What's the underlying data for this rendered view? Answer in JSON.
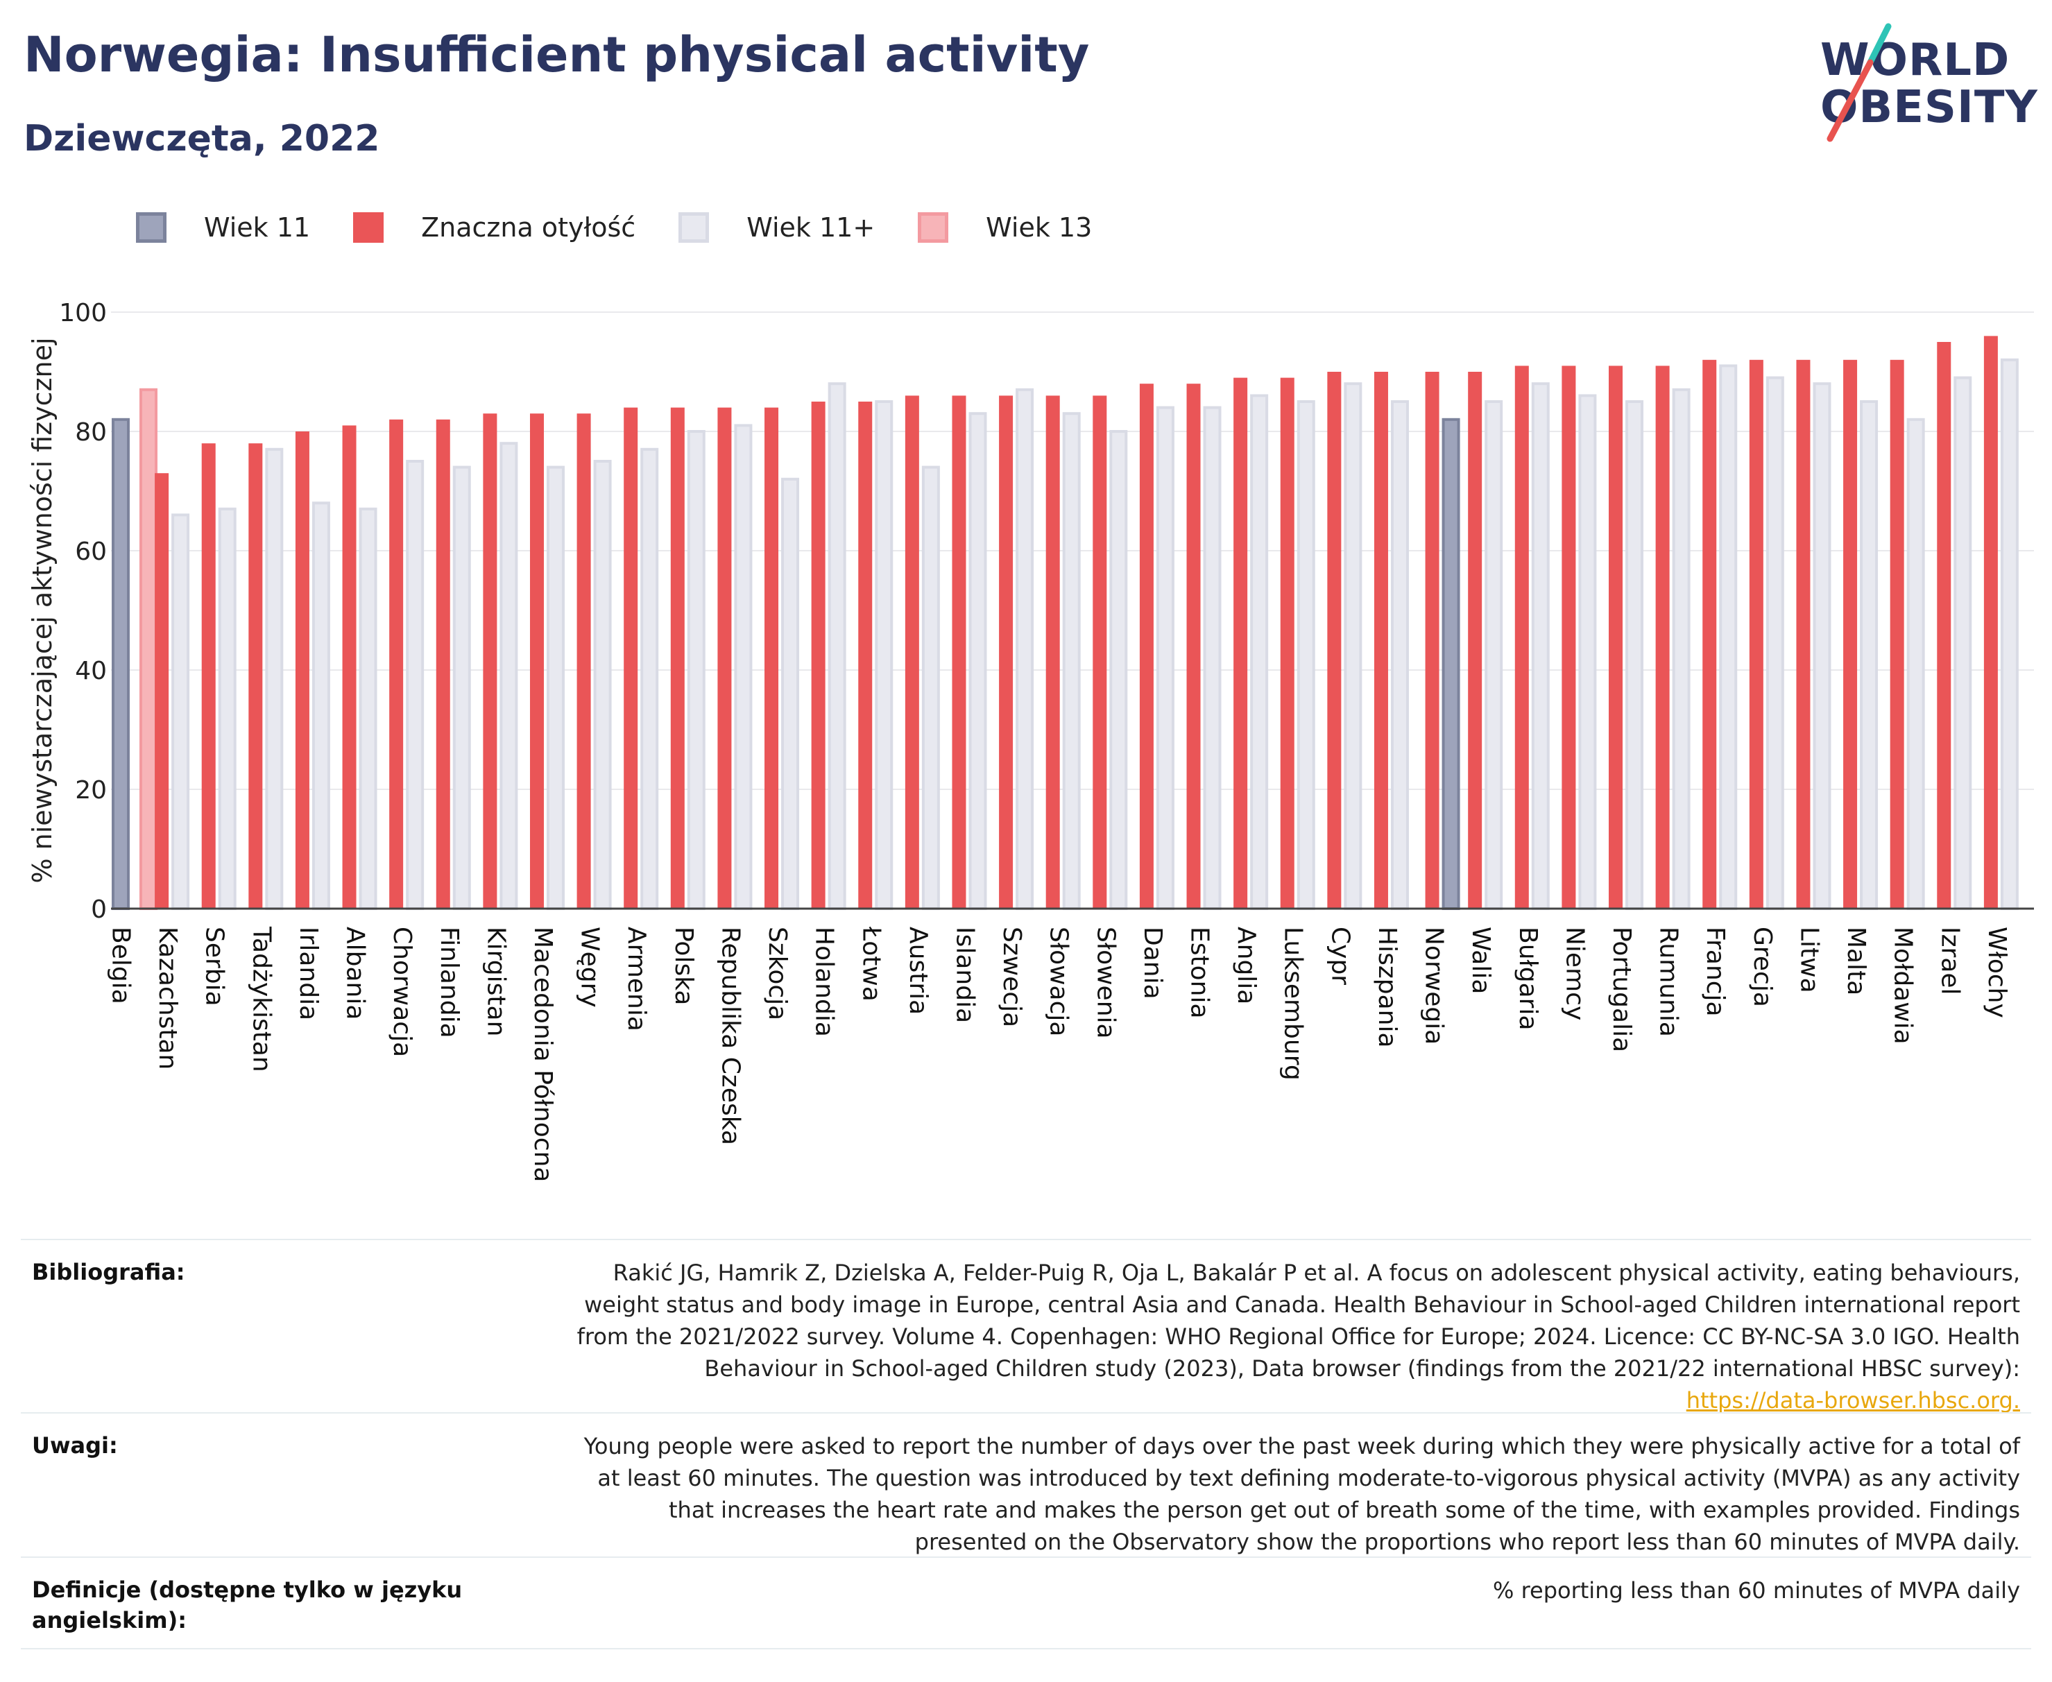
{
  "header": {
    "title": "Norwegia: Insufficient physical activity",
    "subtitle": "Dziewczęta, 2022"
  },
  "logo": {
    "line1": "WORLD",
    "line2": "OBESITY",
    "colors": [
      "#2b3561",
      "#2ec4b6",
      "#e8534f"
    ]
  },
  "legend": [
    {
      "name": "Wiek 11",
      "color": "#9ea4bb",
      "border": "#7c839c"
    },
    {
      "name": "Znaczna otyłość",
      "color": "#ea5557",
      "border": "#ea5557"
    },
    {
      "name": "Wiek 11+",
      "color": "#e8e9f0",
      "border": "#d9dbe5"
    },
    {
      "name": "Wiek 13",
      "color": "#f7b4b8",
      "border": "#f39aa0"
    }
  ],
  "chart_data": {
    "type": "bar",
    "ylabel": "% niewystarczającej aktywności fizycznej",
    "xlabel": "",
    "ylim": [
      0,
      100
    ],
    "yticks": [
      0,
      20,
      40,
      60,
      80,
      100
    ],
    "grid": true,
    "legend_placement": "top-left",
    "categories": [
      "Belgia",
      "Kazachstan",
      "Serbia",
      "Tadżykistan",
      "Irlandia",
      "Albania",
      "Chorwacja",
      "Finlandia",
      "Kirgistan",
      "Macedonia Północna",
      "Węgry",
      "Armenia",
      "Polska",
      "Republika Czeska",
      "Szkocja",
      "Holandia",
      "Łotwa",
      "Austria",
      "Islandia",
      "Szwecja",
      "Słowacja",
      "Słowenia",
      "Dania",
      "Estonia",
      "Anglia",
      "Luksemburg",
      "Cypr",
      "Hiszpania",
      "Norwegia",
      "Walia",
      "Bułgaria",
      "Niemcy",
      "Portugalia",
      "Rumunia",
      "Francja",
      "Grecja",
      "Litwa",
      "Malta",
      "Mołdawia",
      "Izrael",
      "Włochy"
    ],
    "series": [
      {
        "name": "Wiek 11",
        "values": [
          82,
          null,
          null,
          null,
          null,
          null,
          null,
          null,
          null,
          null,
          null,
          null,
          null,
          null,
          null,
          null,
          null,
          null,
          null,
          null,
          null,
          null,
          null,
          null,
          null,
          null,
          null,
          null,
          82,
          null,
          null,
          null,
          null,
          null,
          null,
          null,
          null,
          null,
          null,
          null,
          null
        ]
      },
      {
        "name": "Wiek 13",
        "values": [
          87,
          null,
          null,
          null,
          null,
          null,
          null,
          null,
          null,
          null,
          null,
          null,
          null,
          null,
          null,
          null,
          null,
          null,
          null,
          null,
          null,
          null,
          null,
          null,
          null,
          null,
          null,
          null,
          null,
          null,
          null,
          null,
          null,
          null,
          null,
          null,
          null,
          null,
          null,
          null,
          null
        ]
      },
      {
        "name": "Znaczna otyłość",
        "values": [
          null,
          73,
          78,
          78,
          80,
          81,
          82,
          82,
          83,
          83,
          83,
          84,
          84,
          84,
          84,
          85,
          85,
          86,
          86,
          86,
          86,
          86,
          88,
          88,
          89,
          89,
          90,
          90,
          90,
          90,
          91,
          91,
          91,
          91,
          92,
          92,
          92,
          92,
          92,
          95,
          96
        ]
      },
      {
        "name": "Wiek 11+",
        "values": [
          null,
          66,
          67,
          77,
          68,
          67,
          75,
          74,
          78,
          74,
          75,
          77,
          80,
          81,
          72,
          88,
          85,
          74,
          83,
          87,
          83,
          80,
          84,
          84,
          86,
          85,
          88,
          85,
          null,
          85,
          88,
          86,
          85,
          87,
          91,
          89,
          88,
          85,
          82,
          89,
          92
        ]
      }
    ]
  },
  "meta": {
    "bibliography_label": "Bibliografia:",
    "bibliography_text": "Rakić JG, Hamrik Z, Dzielska A, Felder-Puig R, Oja L, Bakalár P et al. A focus on adolescent physical activity, eating behaviours, weight status and body image in Europe, central Asia and Canada. Health Behaviour in School-aged Children international report from the 2021/2022 survey. Volume 4. Copenhagen: WHO Regional Office for Europe; 2024. Licence: CC BY-NC-SA 3.0 IGO. Health Behaviour in School-aged Children study (2023), Data browser (findings from the 2021/22 international HBSC survey):",
    "bibliography_link": "https://data-browser.hbsc.org.",
    "notes_label": "Uwagi:",
    "notes_text": "Young people were asked to report the number of days over the past week during which they were physically active for a total of at least 60 minutes. The question was introduced by text defining moderate-to-vigorous physical activity (MVPA) as any activity that increases the heart rate and makes the person get out of breath some of the time, with examples provided. Findings presented on the Observatory show the proportions who report less than 60 minutes of MVPA daily.",
    "definitions_label": "Definicje (dostępne tylko w języku angielskim):",
    "definitions_text": "% reporting less than 60 minutes of MVPA daily"
  }
}
